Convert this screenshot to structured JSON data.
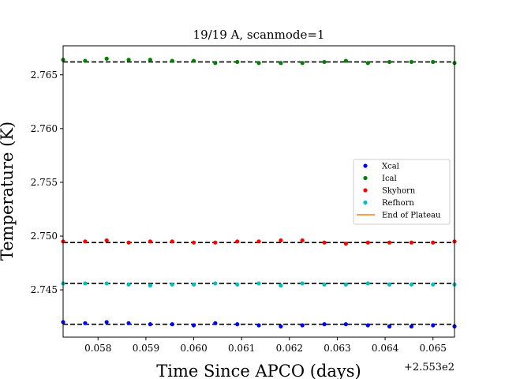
{
  "chart_data": {
    "type": "scatter",
    "title": "19/19 A, scanmode=1",
    "xlabel": "Time Since APCO (days)",
    "ylabel": "Temperature (K)",
    "x_offset_label": "+2.553e2",
    "xlim": [
      0.05727,
      0.06545
    ],
    "ylim": [
      2.7406,
      2.7677
    ],
    "xticks": [
      0.058,
      0.059,
      0.06,
      0.061,
      0.062,
      0.063,
      0.064,
      0.065
    ],
    "xtick_labels": [
      "0.058",
      "0.059",
      "0.060",
      "0.061",
      "0.062",
      "0.063",
      "0.064",
      "0.065"
    ],
    "yticks": [
      2.745,
      2.75,
      2.755,
      2.76,
      2.765
    ],
    "ytick_labels": [
      "2.745",
      "2.750",
      "2.755",
      "2.760",
      "2.765"
    ],
    "grid": false,
    "legend_position": "center-right",
    "x": [
      0.05727,
      0.05773,
      0.05818,
      0.05864,
      0.05909,
      0.05955,
      0.06,
      0.06045,
      0.06091,
      0.06136,
      0.06182,
      0.06227,
      0.06273,
      0.06318,
      0.06364,
      0.06409,
      0.06455,
      0.065,
      0.06545
    ],
    "series": [
      {
        "name": "Xcal",
        "color": "#0000ff",
        "marker": "dot",
        "values": [
          2.742,
          2.7419,
          2.742,
          2.7419,
          2.7418,
          2.7418,
          2.7417,
          2.7419,
          2.7418,
          2.7417,
          2.7416,
          2.7417,
          2.7418,
          2.7418,
          2.7417,
          2.7416,
          2.7416,
          2.7417,
          2.7416
        ]
      },
      {
        "name": "Ical",
        "color": "#008000",
        "marker": "dot",
        "values": [
          2.7664,
          2.7663,
          2.7665,
          2.7664,
          2.7664,
          2.7663,
          2.7663,
          2.7661,
          2.7662,
          2.7661,
          2.7661,
          2.7661,
          2.7662,
          2.7663,
          2.7661,
          2.7662,
          2.7662,
          2.7662,
          2.7661
        ]
      },
      {
        "name": "Skyhorn",
        "color": "#ff0000",
        "marker": "dot",
        "values": [
          2.7495,
          2.7495,
          2.7496,
          2.7494,
          2.7495,
          2.7495,
          2.7494,
          2.7494,
          2.7495,
          2.7495,
          2.7496,
          2.7496,
          2.7494,
          2.7493,
          2.7494,
          2.7494,
          2.7494,
          2.7494,
          2.7495
        ]
      },
      {
        "name": "Refhorn",
        "color": "#00bfbf",
        "marker": "dot",
        "values": [
          2.7456,
          2.7456,
          2.7456,
          2.7455,
          2.7454,
          2.7455,
          2.7455,
          2.7456,
          2.7455,
          2.7456,
          2.7454,
          2.7456,
          2.7455,
          2.7455,
          2.7456,
          2.7455,
          2.7455,
          2.7455,
          2.7455
        ]
      },
      {
        "name": "End of Plateau",
        "color": "#ff7f0e",
        "marker": "line",
        "values": []
      }
    ],
    "mean_lines": [
      {
        "series": "Ical",
        "value": 2.7662,
        "style": "dashed",
        "color": "#000000"
      },
      {
        "series": "Skyhorn",
        "value": 2.7494,
        "style": "dashed",
        "color": "#000000"
      },
      {
        "series": "Refhorn",
        "value": 2.7456,
        "style": "dashed",
        "color": "#000000"
      },
      {
        "series": "Xcal",
        "value": 2.7418,
        "style": "dashed",
        "color": "#000000"
      }
    ]
  }
}
